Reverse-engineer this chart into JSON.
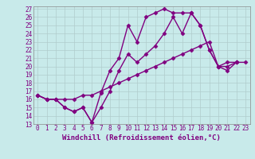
{
  "xlabel": "Windchill (Refroidissement éolien,°C)",
  "bg_color": "#c8eaea",
  "line_color": "#800080",
  "grid_color": "#b0cccc",
  "xlim": [
    -0.5,
    23.5
  ],
  "ylim": [
    13,
    27.3
  ],
  "yticks": [
    13,
    14,
    15,
    16,
    17,
    18,
    19,
    20,
    21,
    22,
    23,
    24,
    25,
    26,
    27
  ],
  "xticks": [
    0,
    1,
    2,
    3,
    4,
    5,
    6,
    7,
    8,
    9,
    10,
    11,
    12,
    13,
    14,
    15,
    16,
    17,
    18,
    19,
    20,
    21,
    22,
    23
  ],
  "line1_x": [
    0,
    1,
    2,
    3,
    4,
    5,
    6,
    7,
    8,
    9,
    10,
    11,
    12,
    13,
    14,
    15,
    16,
    17,
    18,
    19,
    20,
    21,
    22
  ],
  "line1_y": [
    16.5,
    16.0,
    16.0,
    15.0,
    14.5,
    15.0,
    13.2,
    16.8,
    19.5,
    21.0,
    25.0,
    23.0,
    26.0,
    26.5,
    27.0,
    26.5,
    26.5,
    26.5,
    25.0,
    22.0,
    20.0,
    19.5,
    20.5
  ],
  "line2_x": [
    0,
    1,
    2,
    3,
    4,
    5,
    6,
    7,
    8,
    9,
    10,
    11,
    12,
    13,
    14,
    15,
    16,
    17,
    18,
    19,
    20,
    21,
    22
  ],
  "line2_y": [
    16.5,
    16.0,
    16.0,
    15.0,
    14.5,
    15.0,
    13.2,
    15.0,
    17.0,
    19.5,
    21.5,
    20.5,
    21.5,
    22.5,
    24.0,
    26.0,
    24.0,
    26.5,
    25.0,
    22.0,
    20.0,
    20.0,
    20.5
  ],
  "line3_x": [
    0,
    1,
    2,
    3,
    4,
    5,
    6,
    7,
    8,
    9,
    10,
    11,
    12,
    13,
    14,
    15,
    16,
    17,
    18,
    19,
    20,
    21,
    22,
    23
  ],
  "line3_y": [
    16.5,
    16.0,
    16.0,
    16.0,
    16.0,
    16.5,
    16.5,
    17.0,
    17.5,
    18.0,
    18.5,
    19.0,
    19.5,
    20.0,
    20.5,
    21.0,
    21.5,
    22.0,
    22.5,
    23.0,
    20.0,
    20.5,
    20.5,
    20.5
  ],
  "marker": "D",
  "markersize": 2.5,
  "linewidth": 1.0,
  "tick_fontsize": 5.5,
  "label_fontsize": 6.5
}
